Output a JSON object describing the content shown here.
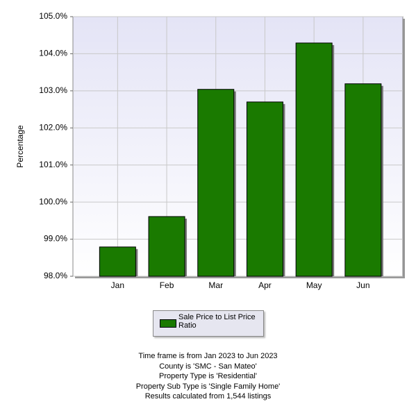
{
  "chart_data": {
    "type": "bar",
    "y_label": "Percentage",
    "categories": [
      "Jan",
      "Feb",
      "Mar",
      "Apr",
      "May",
      "Jun"
    ],
    "series": [
      {
        "name": "Sale Price to List Price Ratio",
        "color": "#1a7a00",
        "values": [
          98.79,
          99.61,
          103.04,
          102.7,
          104.29,
          103.19
        ]
      }
    ],
    "ylim": [
      98,
      105
    ],
    "yticks": [
      {
        "value": 98,
        "label": "98.0%"
      },
      {
        "value": 99,
        "label": "99.0%"
      },
      {
        "value": 100,
        "label": "100.0%"
      },
      {
        "value": 101,
        "label": "101.0%"
      },
      {
        "value": 102,
        "label": "102.0%"
      },
      {
        "value": 103,
        "label": "103.0%"
      },
      {
        "value": 104,
        "label": "104.0%"
      },
      {
        "value": 105,
        "label": "105.0%"
      }
    ],
    "grid": true,
    "notes": [
      "Time frame is from Jan 2023 to Jun 2023",
      "County is 'SMC - San Mateo'",
      "Property Type is 'Residential'",
      "Property Sub Type is 'Single Family Home'",
      "Results calculated from 1,544 listings"
    ]
  }
}
